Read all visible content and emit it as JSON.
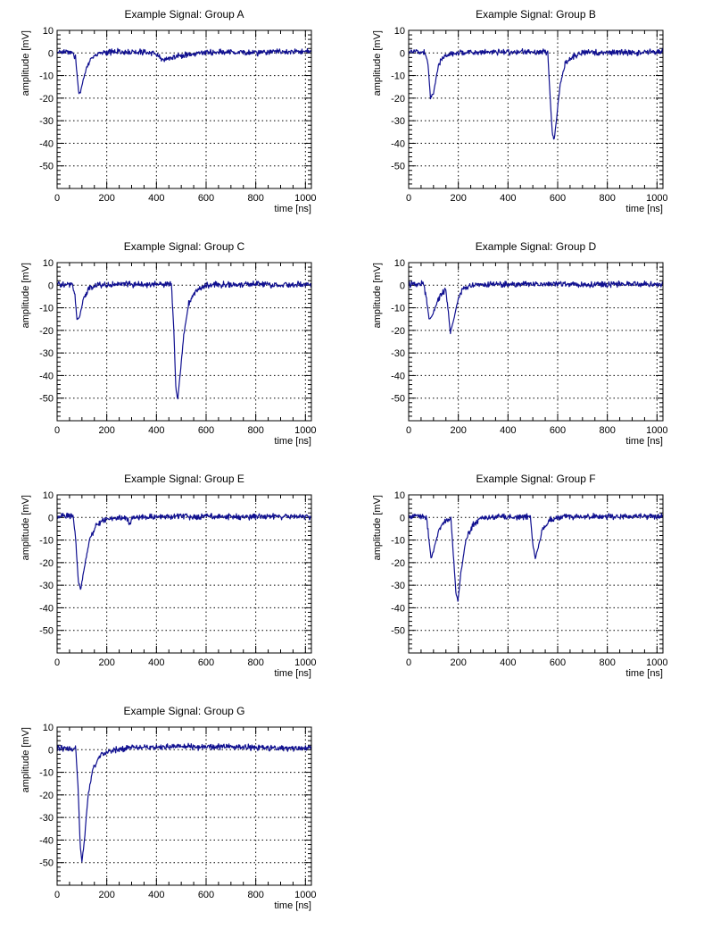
{
  "chart_data": [
    {
      "type": "line",
      "title": "Example Signal: Group A",
      "xlabel": "time [ns]",
      "ylabel": "amplitude [mV]",
      "xlim": [
        0,
        1024
      ],
      "ylim": [
        -60,
        10
      ],
      "xticks": [
        0,
        200,
        400,
        600,
        800,
        1000
      ],
      "yticks": [
        10,
        0,
        -10,
        -20,
        -30,
        -40,
        -50
      ],
      "grid": true,
      "series": [
        {
          "x": [
            0,
            60,
            75,
            82,
            88,
            95,
            105,
            120,
            140,
            170,
            250,
            320,
            380,
            430,
            500,
            600,
            700,
            800,
            900,
            1024
          ],
          "values": [
            0.5,
            0.5,
            -2,
            -12,
            -18,
            -17,
            -12,
            -6,
            -2,
            0,
            0.5,
            0.5,
            0,
            -3,
            -1,
            0.3,
            0.5,
            0,
            0.5,
            0.8
          ]
        }
      ]
    },
    {
      "type": "line",
      "title": "Example Signal: Group B",
      "xlabel": "time [ns]",
      "ylabel": "amplitude [mV]",
      "xlim": [
        0,
        1024
      ],
      "ylim": [
        -60,
        10
      ],
      "xticks": [
        0,
        200,
        400,
        600,
        800,
        1000
      ],
      "yticks": [
        10,
        0,
        -10,
        -20,
        -30,
        -40,
        -50
      ],
      "grid": true,
      "series": [
        {
          "x": [
            0,
            65,
            78,
            88,
            100,
            115,
            130,
            160,
            250,
            400,
            540,
            560,
            570,
            578,
            585,
            595,
            610,
            630,
            660,
            700,
            800,
            900,
            1024
          ],
          "values": [
            0.5,
            0.5,
            -5,
            -20,
            -18,
            -8,
            -3,
            -0.5,
            0.3,
            0.3,
            0.5,
            0,
            -20,
            -35,
            -39,
            -30,
            -14,
            -5,
            -1.5,
            0,
            0.5,
            0,
            0.5
          ]
        }
      ]
    },
    {
      "type": "line",
      "title": "Example Signal: Group C",
      "xlabel": "time [ns]",
      "ylabel": "amplitude [mV]",
      "xlim": [
        0,
        1024
      ],
      "ylim": [
        -60,
        10
      ],
      "xticks": [
        0,
        200,
        400,
        600,
        800,
        1000
      ],
      "yticks": [
        10,
        0,
        -10,
        -20,
        -30,
        -40,
        -50
      ],
      "grid": true,
      "series": [
        {
          "x": [
            0,
            60,
            72,
            80,
            90,
            105,
            125,
            160,
            250,
            380,
            460,
            470,
            478,
            485,
            495,
            510,
            530,
            560,
            600,
            700,
            800,
            900,
            1024
          ],
          "values": [
            0.5,
            0.5,
            -5,
            -15,
            -14,
            -7,
            -2,
            0,
            0.3,
            0.3,
            0.5,
            -20,
            -45,
            -51,
            -40,
            -22,
            -8,
            -2,
            0,
            0.3,
            0.5,
            0,
            0.5
          ]
        }
      ]
    },
    {
      "type": "line",
      "title": "Example Signal: Group D",
      "xlabel": "time [ns]",
      "ylabel": "amplitude [mV]",
      "xlim": [
        0,
        1024
      ],
      "ylim": [
        -60,
        10
      ],
      "xticks": [
        0,
        200,
        400,
        600,
        800,
        1000
      ],
      "yticks": [
        10,
        0,
        -10,
        -20,
        -30,
        -40,
        -50
      ],
      "grid": true,
      "series": [
        {
          "x": [
            0,
            60,
            72,
            82,
            92,
            110,
            130,
            150,
            160,
            168,
            178,
            195,
            215,
            250,
            350,
            500,
            600,
            700,
            800,
            900,
            1024
          ],
          "values": [
            0.5,
            0.5,
            -6,
            -15,
            -14,
            -9,
            -4,
            -2,
            -12,
            -21,
            -17,
            -8,
            -2,
            0,
            0.3,
            0.5,
            0.5,
            0.3,
            0.3,
            0.5,
            0.5
          ]
        }
      ]
    },
    {
      "type": "line",
      "title": "Example Signal: Group E",
      "xlabel": "time [ns]",
      "ylabel": "amplitude [mV]",
      "xlim": [
        0,
        1024
      ],
      "ylim": [
        -60,
        10
      ],
      "xticks": [
        0,
        200,
        400,
        600,
        800,
        1000
      ],
      "yticks": [
        10,
        0,
        -10,
        -20,
        -30,
        -40,
        -50
      ],
      "grid": true,
      "series": [
        {
          "x": [
            0,
            65,
            75,
            85,
            95,
            110,
            130,
            160,
            200,
            280,
            295,
            305,
            350,
            450,
            550,
            650,
            750,
            850,
            950,
            1024
          ],
          "values": [
            0.5,
            0.5,
            -10,
            -28,
            -32,
            -22,
            -10,
            -3,
            -0.5,
            0,
            -3,
            0,
            0.3,
            0.5,
            0.3,
            0.5,
            0.3,
            0.5,
            0.3,
            0.5
          ]
        }
      ]
    },
    {
      "type": "line",
      "title": "Example Signal: Group F",
      "xlabel": "time [ns]",
      "ylabel": "amplitude [mV]",
      "xlim": [
        0,
        1024
      ],
      "ylim": [
        -60,
        10
      ],
      "xticks": [
        0,
        200,
        400,
        600,
        800,
        1000
      ],
      "yticks": [
        10,
        0,
        -10,
        -20,
        -30,
        -40,
        -50
      ],
      "grid": true,
      "series": [
        {
          "x": [
            0,
            70,
            80,
            90,
            100,
            120,
            140,
            170,
            182,
            190,
            198,
            210,
            230,
            260,
            300,
            400,
            490,
            500,
            510,
            520,
            540,
            570,
            620,
            700,
            800,
            900,
            1024
          ],
          "values": [
            0.5,
            0.5,
            -8,
            -18,
            -15,
            -6,
            -2,
            0,
            -20,
            -33,
            -37,
            -25,
            -10,
            -3,
            0,
            0.5,
            0,
            -12,
            -18,
            -14,
            -5,
            -1,
            0.3,
            0.5,
            0.3,
            0.5,
            0.5
          ]
        }
      ]
    },
    {
      "type": "line",
      "title": "Example Signal: Group G",
      "xlabel": "time [ns]",
      "ylabel": "amplitude [mV]",
      "xlim": [
        0,
        1024
      ],
      "ylim": [
        -60,
        10
      ],
      "xticks": [
        0,
        200,
        400,
        600,
        800,
        1000
      ],
      "yticks": [
        10,
        0,
        -10,
        -20,
        -30,
        -40,
        -50
      ],
      "grid": true,
      "series": [
        {
          "x": [
            0,
            75,
            85,
            93,
            100,
            110,
            125,
            145,
            170,
            200,
            240,
            300,
            400,
            500,
            600,
            700,
            800,
            900,
            1024
          ],
          "values": [
            0.5,
            0.5,
            -18,
            -42,
            -50,
            -40,
            -20,
            -8,
            -3,
            -1,
            0,
            1,
            1,
            1.5,
            1,
            1.5,
            1,
            0.5,
            1
          ]
        }
      ]
    }
  ]
}
